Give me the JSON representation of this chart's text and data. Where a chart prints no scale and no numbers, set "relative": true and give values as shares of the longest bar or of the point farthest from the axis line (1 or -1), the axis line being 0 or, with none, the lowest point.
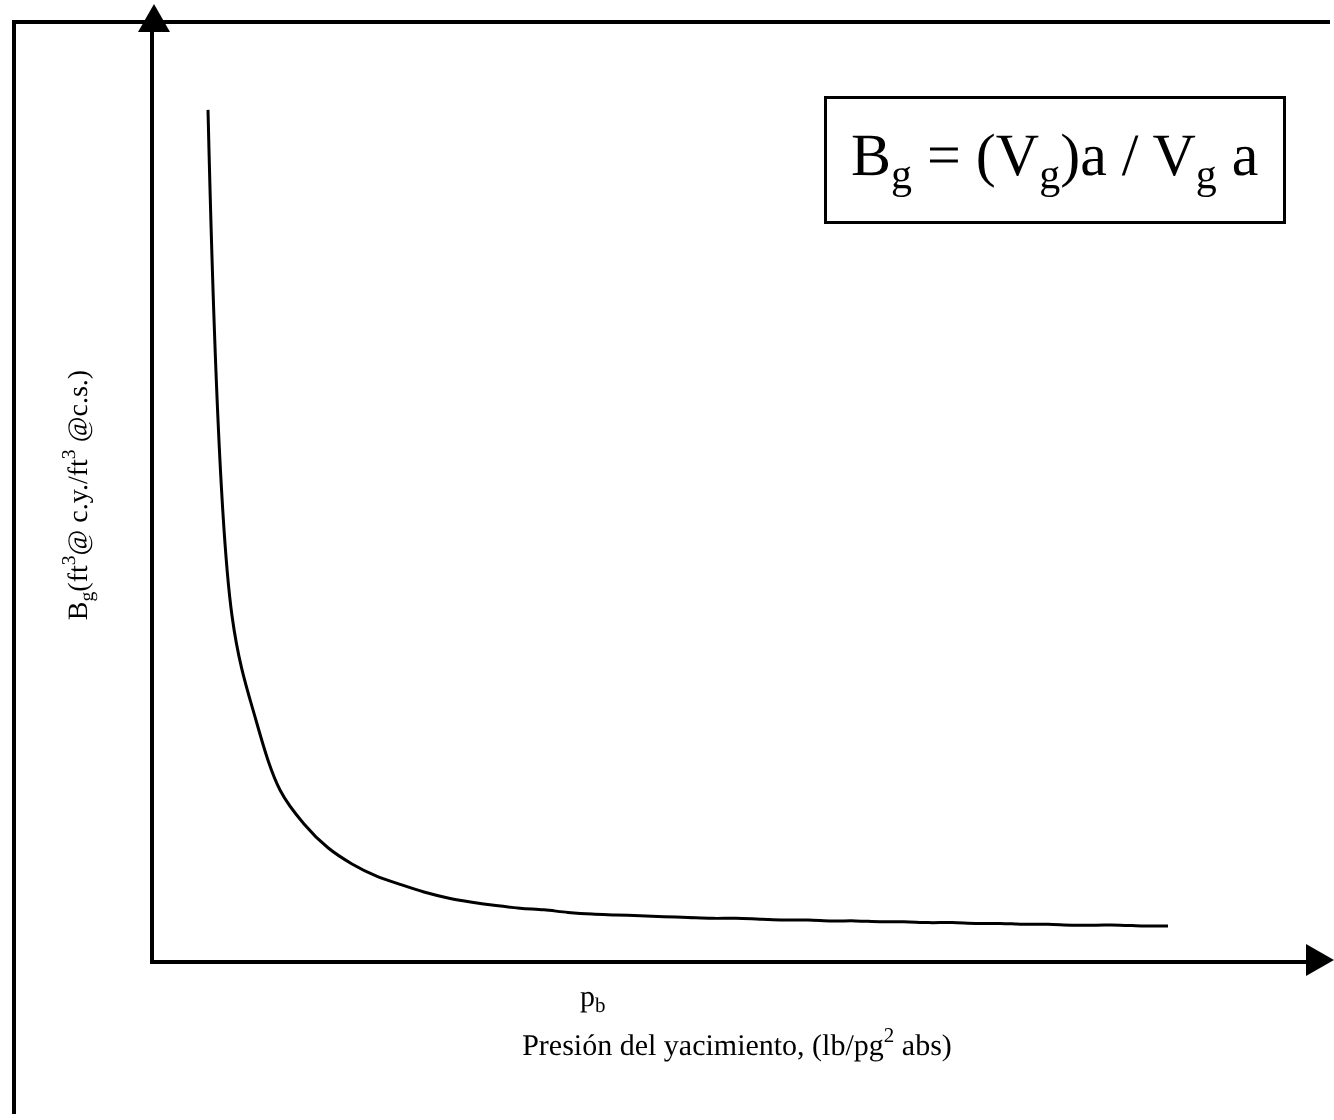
{
  "chart_data": {
    "type": "line",
    "relative": true,
    "xlabel": "Presión del yacimiento, (lb/pg$^{2}$ abs)",
    "ylabel": "B$_{g}$(ft$^{3}$@ c.y./ft$^{3}$ @c.s.)",
    "categories": [
      null,
      null,
      null,
      null,
      null,
      null,
      null,
      null,
      null,
      null,
      null,
      null,
      null,
      null,
      null,
      null,
      null,
      null,
      null,
      null,
      null,
      null,
      null,
      null,
      null,
      null,
      null,
      null,
      null,
      null,
      null,
      null,
      null,
      null,
      null,
      null,
      null,
      null,
      null,
      null,
      null
    ],
    "series": [
      {
        "color": "#000000",
        "values": [
          1.0,
          0.405,
          0.282,
          0.2,
          0.16,
          0.132,
          0.113,
          0.099,
          0.089,
          0.08,
          0.073,
          0.068,
          0.064,
          0.061,
          0.059,
          0.056,
          0.054,
          0.053,
          0.052,
          0.051,
          0.05,
          0.049,
          0.049,
          0.048,
          0.047,
          0.047,
          0.046,
          0.046,
          0.045,
          0.045,
          0.044,
          0.044,
          0.043,
          0.043,
          0.042,
          0.042,
          0.041,
          0.041,
          0.041,
          0.04,
          0.04
        ]
      }
    ],
    "annotations": [
      "B$_{g}$ = (V$_{g}$)a / V$_{g}$ a",
      "p$_{b}$"
    ],
    "grid": false,
    "marker": "none",
    "line_style": "solid"
  }
}
